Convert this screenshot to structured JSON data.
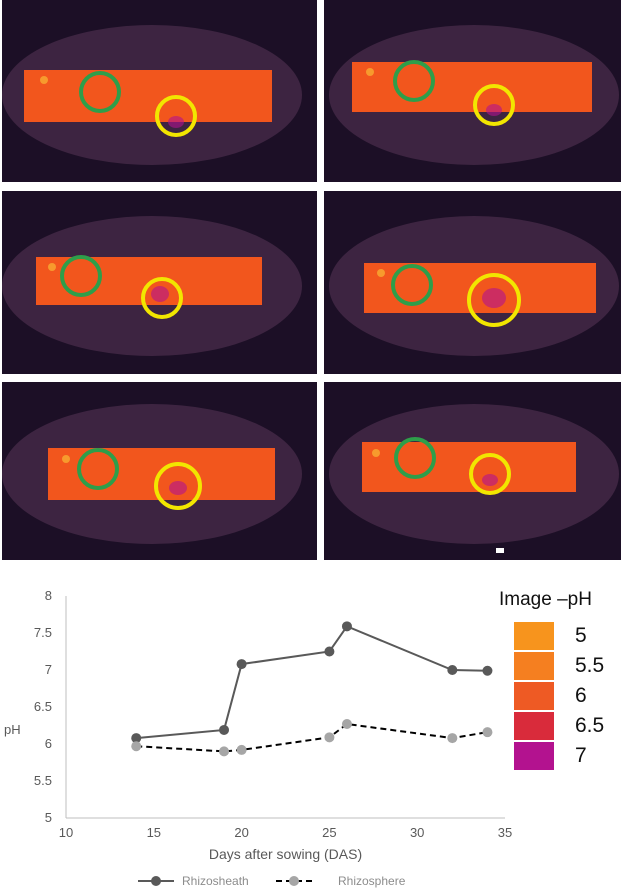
{
  "chart_data": {
    "type": "line",
    "xlabel": "Days after sowing (DAS)",
    "ylabel": "pH",
    "xlim": [
      10,
      35
    ],
    "ylim": [
      5,
      8
    ],
    "x_ticks": [
      "10",
      "15",
      "20",
      "25",
      "30",
      "35"
    ],
    "y_ticks": [
      "5",
      "5.5",
      "6",
      "6.5",
      "7",
      "7.5",
      "8"
    ],
    "grid": false,
    "legend_position": "bottom",
    "series": [
      {
        "name": "Rhizosheath",
        "color": "#595959",
        "style": "solid",
        "points": [
          [
            14,
            6.08
          ],
          [
            19,
            6.19
          ],
          [
            20,
            7.08
          ],
          [
            25,
            7.25
          ],
          [
            26,
            7.59
          ],
          [
            32,
            7.0
          ],
          [
            34,
            6.99
          ]
        ]
      },
      {
        "name": "Rhizosphere",
        "color": "#a6a6a6",
        "line_color": "#000000",
        "style": "dashed",
        "points": [
          [
            14,
            5.97
          ],
          [
            19,
            5.9
          ],
          [
            20,
            5.92
          ],
          [
            25,
            6.09
          ],
          [
            26,
            6.27
          ],
          [
            32,
            6.08
          ],
          [
            34,
            6.16
          ]
        ]
      }
    ]
  },
  "color_scale": {
    "title": "Image –pH",
    "entries": [
      {
        "label": "5",
        "color": "#f7941d"
      },
      {
        "label": "5.5",
        "color": "#f57f20"
      },
      {
        "label": "6",
        "color": "#ee5a24"
      },
      {
        "label": "6.5",
        "color": "#d92b3b"
      },
      {
        "label": "7",
        "color": "#b3128f"
      }
    ]
  },
  "images": {
    "panel_count": 6,
    "marker_colors": {
      "reference": "#2e9e4a",
      "root": "#f2e600"
    },
    "background_color": "#1c0f26",
    "strip_color": "#f2561d"
  }
}
